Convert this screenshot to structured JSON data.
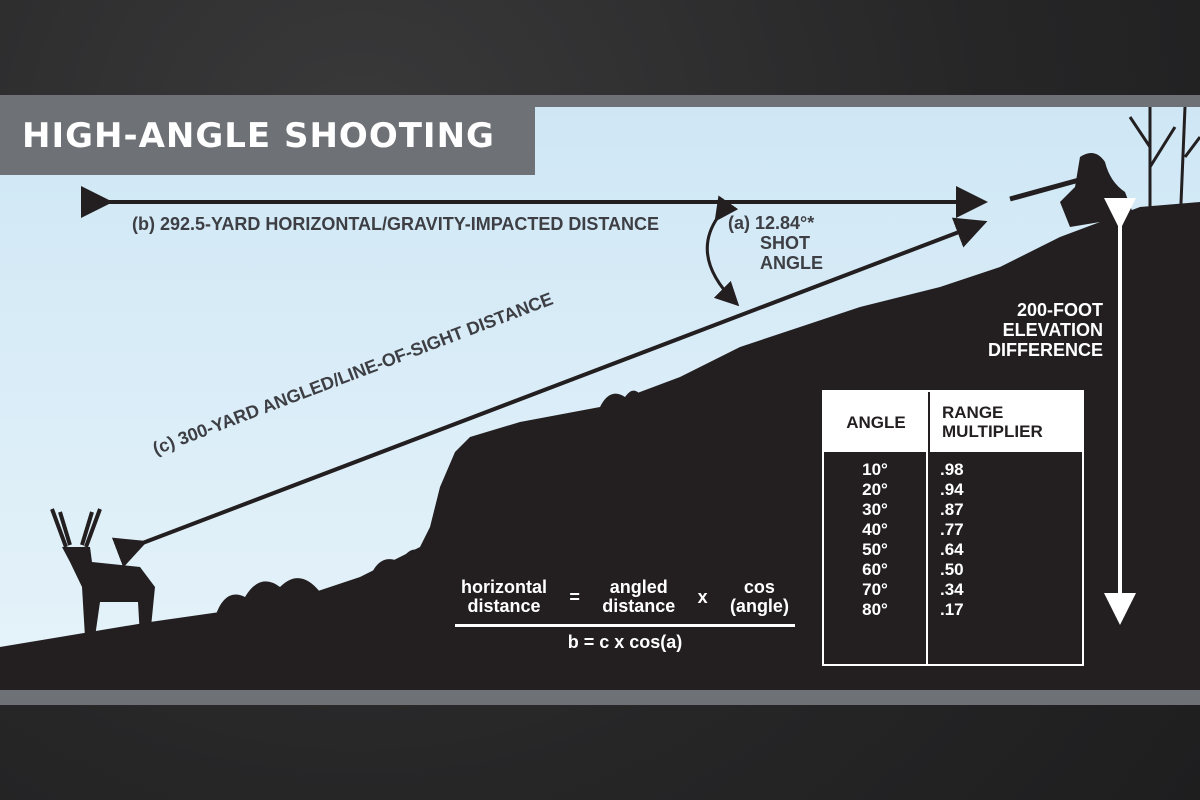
{
  "title": "HIGH-ANGLE SHOOTING",
  "labels": {
    "horizontal": "(b) 292.5-YARD HORIZONTAL/GRAVITY-IMPACTED DISTANCE",
    "angle_line1": "(a) 12.84°*",
    "angle_line2": "SHOT",
    "angle_line3": "ANGLE",
    "line_of_sight": "(c) 300-YARD ANGLED/LINE-OF-SIGHT DISTANCE",
    "elevation_line1": "200-FOOT",
    "elevation_line2": "ELEVATION",
    "elevation_line3": "DIFFERENCE"
  },
  "formula": {
    "term1_line1": "horizontal",
    "term1_line2": "distance",
    "equals": "=",
    "term2_line1": "angled",
    "term2_line2": "distance",
    "times": "x",
    "term3_line1": "cos",
    "term3_line2": "(angle)",
    "short": "b = c x cos(a)"
  },
  "table": {
    "headers": [
      "ANGLE",
      "RANGE MULTIPLIER"
    ],
    "rows": [
      {
        "angle": "10°",
        "multiplier": ".98"
      },
      {
        "angle": "20°",
        "multiplier": ".94"
      },
      {
        "angle": "30°",
        "multiplier": ".87"
      },
      {
        "angle": "40°",
        "multiplier": ".77"
      },
      {
        "angle": "50°",
        "multiplier": ".64"
      },
      {
        "angle": "60°",
        "multiplier": ".50"
      },
      {
        "angle": "70°",
        "multiplier": ".34"
      },
      {
        "angle": "80°",
        "multiplier": ".17"
      }
    ]
  },
  "colors": {
    "sky": "#d6ebf6",
    "ground": "#231f20",
    "frame": "#6e7175",
    "text_dark": "#3d3f44"
  }
}
